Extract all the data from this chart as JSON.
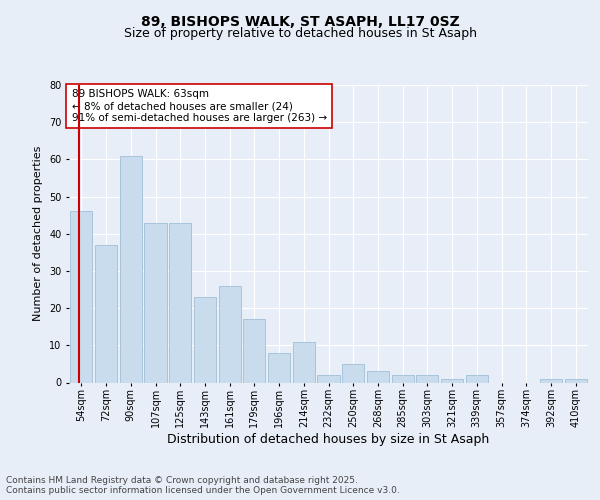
{
  "title1": "89, BISHOPS WALK, ST ASAPH, LL17 0SZ",
  "title2": "Size of property relative to detached houses in St Asaph",
  "xlabel": "Distribution of detached houses by size in St Asaph",
  "ylabel": "Number of detached properties",
  "categories": [
    "54sqm",
    "72sqm",
    "90sqm",
    "107sqm",
    "125sqm",
    "143sqm",
    "161sqm",
    "179sqm",
    "196sqm",
    "214sqm",
    "232sqm",
    "250sqm",
    "268sqm",
    "285sqm",
    "303sqm",
    "321sqm",
    "339sqm",
    "357sqm",
    "374sqm",
    "392sqm",
    "410sqm"
  ],
  "values": [
    46,
    37,
    61,
    43,
    43,
    23,
    26,
    17,
    8,
    11,
    2,
    5,
    3,
    2,
    2,
    1,
    2,
    0,
    0,
    1,
    1
  ],
  "bar_color": "#c9dcee",
  "bar_edge_color": "#a0bfd8",
  "vline_color": "#cc0000",
  "annotation_text": "89 BISHOPS WALK: 63sqm\n← 8% of detached houses are smaller (24)\n91% of semi-detached houses are larger (263) →",
  "annotation_box_color": "#ffffff",
  "annotation_box_edge": "#cc0000",
  "footer": "Contains HM Land Registry data © Crown copyright and database right 2025.\nContains public sector information licensed under the Open Government Licence v3.0.",
  "ylim": [
    0,
    80
  ],
  "yticks": [
    0,
    10,
    20,
    30,
    40,
    50,
    60,
    70,
    80
  ],
  "bg_color": "#e8eef8",
  "plot_bg_color": "#e8eef8",
  "title1_fontsize": 10,
  "title2_fontsize": 9,
  "xlabel_fontsize": 9,
  "ylabel_fontsize": 8,
  "tick_fontsize": 7,
  "footer_fontsize": 6.5
}
